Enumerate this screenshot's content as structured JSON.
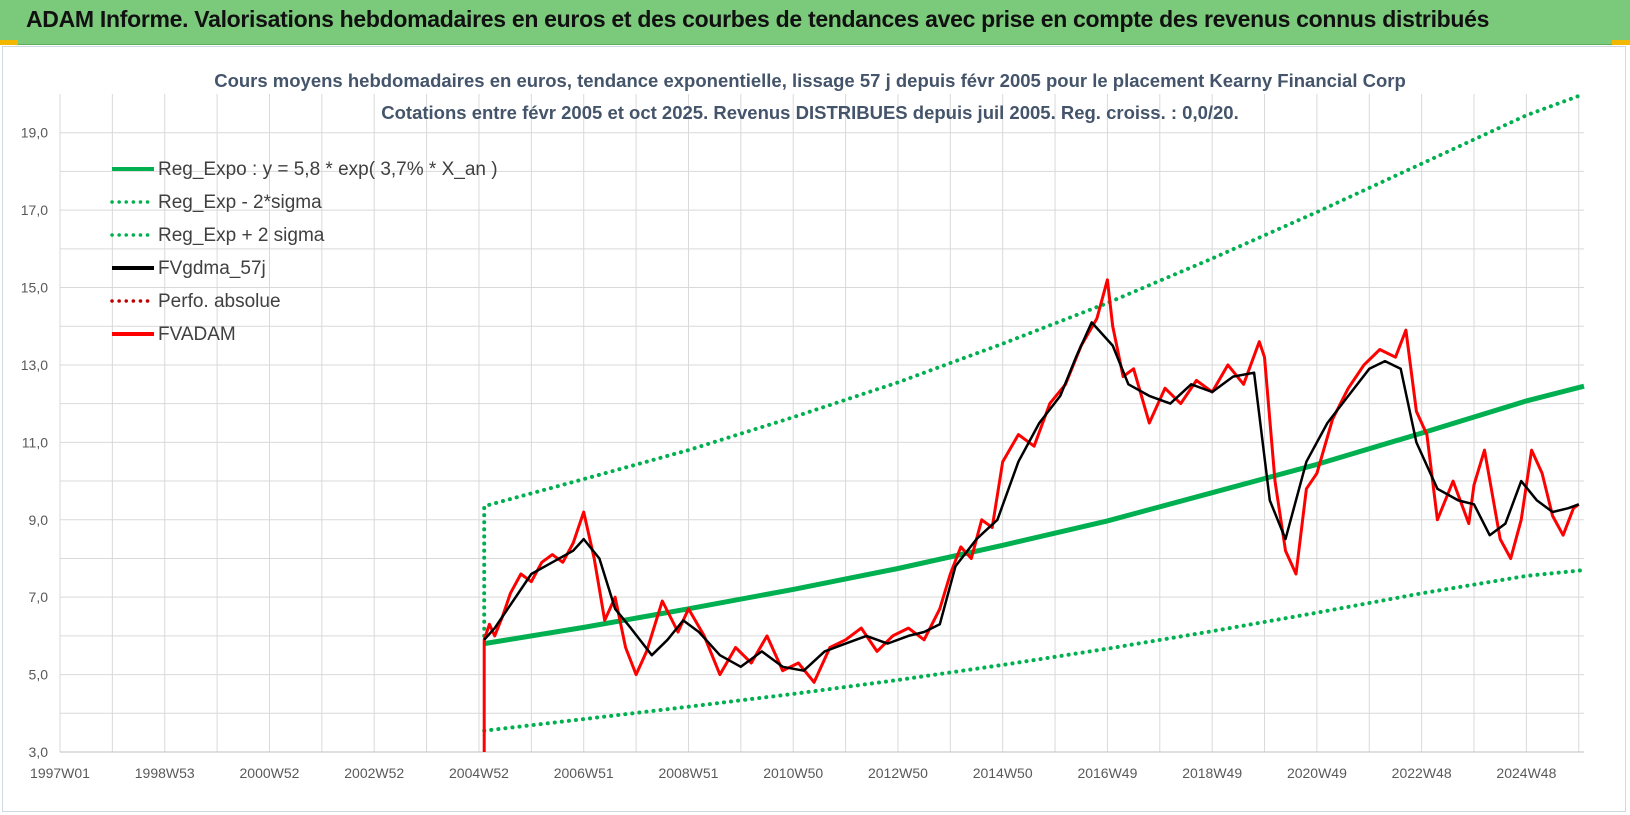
{
  "banner": {
    "title": "ADAM Informe. Valorisations hebdomadaires en euros et des courbes de tendances avec prise en compte des revenus connus distribués"
  },
  "chart_data": {
    "type": "line",
    "title": "Cours moyens hebdomadaires en euros, tendance exponentielle, lissage 57 j depuis févr 2005 pour le placement Kearny Financial Corp",
    "subtitle": "Cotations entre févr 2005 et oct 2025. Revenus DISTRIBUES depuis juil 2005. Reg. croiss. : 0,0/20.",
    "xlabel": "",
    "ylabel": "",
    "xlim": [
      1997.0,
      2026.1
    ],
    "ylim": [
      3.0,
      20.0
    ],
    "y_ticks": [
      "19,0",
      "17,0",
      "15,0",
      "13,0",
      "11,0",
      "9,0",
      "7,0",
      "5,0",
      "3,0"
    ],
    "y_tick_values": [
      19,
      17,
      15,
      13,
      11,
      9,
      7,
      5,
      3
    ],
    "x_ticks": [
      "1997W01",
      "1998W53",
      "2000W52",
      "2002W52",
      "2004W52",
      "2006W51",
      "2008W51",
      "2010W50",
      "2012W50",
      "2014W50",
      "2016W49",
      "2018W49",
      "2020W49",
      "2022W48",
      "2024W48"
    ],
    "x_tick_values": [
      1997.0,
      1999.0,
      2001.0,
      2003.0,
      2005.0,
      2007.0,
      2009.0,
      2011.0,
      2013.0,
      2015.0,
      2017.0,
      2019.0,
      2021.0,
      2023.0,
      2025.0
    ],
    "grid": true,
    "legend_position": "top-left",
    "series": [
      {
        "name": "Reg_Expo : y = 5,8 * exp( 3,7% *  X_an )",
        "color": "#00b050",
        "style": "solid",
        "width": 5,
        "x": [
          2005.1,
          2007,
          2009,
          2011,
          2013,
          2015,
          2017,
          2019,
          2021,
          2023,
          2025,
          2026.1
        ],
        "y": [
          5.8,
          6.22,
          6.7,
          7.2,
          7.74,
          8.34,
          8.97,
          9.7,
          10.43,
          11.24,
          12.07,
          12.45
        ]
      },
      {
        "name": "Reg_Exp - 2*sigma",
        "color": "#00b050",
        "style": "dotted",
        "width": 4,
        "x": [
          2005.1,
          2007,
          2009,
          2011,
          2013,
          2015,
          2017,
          2019,
          2021,
          2023,
          2025,
          2026.1
        ],
        "y": [
          3.55,
          3.85,
          4.17,
          4.5,
          4.86,
          5.25,
          5.67,
          6.12,
          6.6,
          7.1,
          7.55,
          7.7
        ]
      },
      {
        "name": "Reg_Exp + 2 sigma",
        "color": "#00b050",
        "style": "dotted",
        "width": 4,
        "x": [
          2005.1,
          2005.1,
          2007,
          2009,
          2011,
          2013,
          2015,
          2017,
          2019,
          2021,
          2023,
          2025,
          2026.1
        ],
        "y": [
          6.0,
          9.35,
          10.05,
          10.8,
          11.65,
          12.55,
          13.55,
          14.6,
          15.75,
          16.95,
          18.2,
          19.45,
          20.0
        ]
      },
      {
        "name": "FVgdma_57j",
        "color": "#000000",
        "style": "solid",
        "width": 2.5,
        "x": [
          2005.1,
          2005.3,
          2005.6,
          2006.0,
          2006.4,
          2006.8,
          2007.0,
          2007.3,
          2007.6,
          2007.9,
          2008.3,
          2008.6,
          2008.9,
          2009.2,
          2009.6,
          2010.0,
          2010.4,
          2010.8,
          2011.2,
          2011.6,
          2012.0,
          2012.4,
          2012.8,
          2013.2,
          2013.5,
          2013.8,
          2014.1,
          2014.5,
          2014.9,
          2015.3,
          2015.7,
          2016.1,
          2016.4,
          2016.7,
          2017.1,
          2017.4,
          2017.8,
          2018.2,
          2018.6,
          2019.0,
          2019.4,
          2019.8,
          2020.1,
          2020.4,
          2020.8,
          2021.2,
          2021.6,
          2022.0,
          2022.3,
          2022.6,
          2022.9,
          2023.3,
          2023.7,
          2024.0,
          2024.3,
          2024.6,
          2024.9,
          2025.2,
          2025.5,
          2025.8,
          2026.0
        ],
        "y": [
          5.9,
          6.2,
          6.8,
          7.6,
          7.9,
          8.2,
          8.5,
          8.0,
          6.7,
          6.2,
          5.5,
          5.9,
          6.4,
          6.1,
          5.5,
          5.2,
          5.6,
          5.2,
          5.1,
          5.6,
          5.8,
          6.0,
          5.8,
          6.0,
          6.1,
          6.3,
          7.8,
          8.5,
          9.0,
          10.5,
          11.5,
          12.2,
          13.2,
          14.1,
          13.5,
          12.5,
          12.2,
          12.0,
          12.5,
          12.3,
          12.7,
          12.8,
          9.5,
          8.5,
          10.5,
          11.5,
          12.2,
          12.9,
          13.1,
          12.9,
          11.0,
          9.8,
          9.5,
          9.4,
          8.6,
          8.9,
          10.0,
          9.5,
          9.2,
          9.3,
          9.4
        ]
      },
      {
        "name": "Perfo. absolue",
        "color": "#c00000",
        "style": "dotted",
        "width": 3,
        "x": [],
        "y": []
      },
      {
        "name": "FVADAM",
        "color": "#ff0000",
        "style": "solid",
        "width": 3,
        "x": [
          2005.1,
          2005.1,
          2005.2,
          2005.3,
          2005.45,
          2005.6,
          2005.8,
          2006.0,
          2006.2,
          2006.4,
          2006.6,
          2006.8,
          2007.0,
          2007.2,
          2007.4,
          2007.6,
          2007.8,
          2008.0,
          2008.2,
          2008.5,
          2008.8,
          2009.0,
          2009.3,
          2009.6,
          2009.9,
          2010.2,
          2010.5,
          2010.8,
          2011.1,
          2011.4,
          2011.7,
          2012.0,
          2012.3,
          2012.6,
          2012.9,
          2013.2,
          2013.5,
          2013.8,
          2014.0,
          2014.2,
          2014.4,
          2014.6,
          2014.8,
          2015.0,
          2015.3,
          2015.6,
          2015.9,
          2016.2,
          2016.5,
          2016.8,
          2017.0,
          2017.1,
          2017.3,
          2017.5,
          2017.8,
          2018.1,
          2018.4,
          2018.7,
          2019.0,
          2019.3,
          2019.6,
          2019.9,
          2020.0,
          2020.2,
          2020.4,
          2020.6,
          2020.8,
          2021.0,
          2021.3,
          2021.6,
          2021.9,
          2022.2,
          2022.5,
          2022.7,
          2022.9,
          2023.1,
          2023.3,
          2023.6,
          2023.9,
          2024.0,
          2024.2,
          2024.5,
          2024.7,
          2024.9,
          2025.1,
          2025.3,
          2025.5,
          2025.7,
          2025.9,
          2026.0
        ],
        "y": [
          3.0,
          5.9,
          6.3,
          6.0,
          6.5,
          7.1,
          7.6,
          7.4,
          7.9,
          8.1,
          7.9,
          8.4,
          9.2,
          8.0,
          6.4,
          7.0,
          5.7,
          5.0,
          5.6,
          6.9,
          6.1,
          6.7,
          6.0,
          5.0,
          5.7,
          5.3,
          6.0,
          5.1,
          5.3,
          4.8,
          5.7,
          5.9,
          6.2,
          5.6,
          6.0,
          6.2,
          5.9,
          6.7,
          7.6,
          8.3,
          8.0,
          9.0,
          8.8,
          10.5,
          11.2,
          10.9,
          12.0,
          12.5,
          13.5,
          14.2,
          15.2,
          14.0,
          12.7,
          12.9,
          11.5,
          12.4,
          12.0,
          12.6,
          12.3,
          13.0,
          12.5,
          13.6,
          13.2,
          10.0,
          8.2,
          7.6,
          9.8,
          10.2,
          11.6,
          12.4,
          13.0,
          13.4,
          13.2,
          13.9,
          11.8,
          11.2,
          9.0,
          10.0,
          8.9,
          9.9,
          10.8,
          8.5,
          8.0,
          9.0,
          10.8,
          10.2,
          9.1,
          8.6,
          9.3,
          9.4
        ]
      }
    ]
  }
}
